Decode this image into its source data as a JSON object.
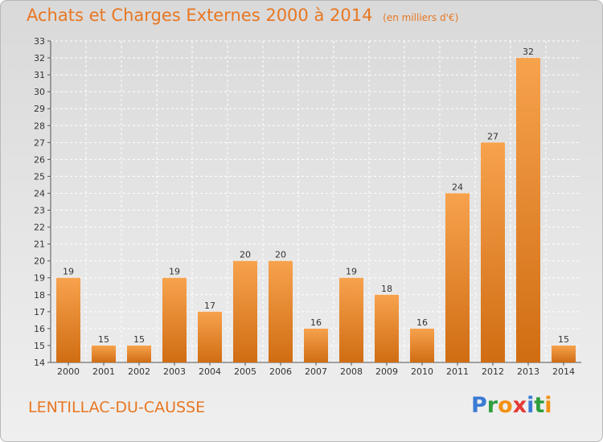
{
  "header": {
    "title": "Achats et Charges Externes 2000 à 2014",
    "subtitle": "(en milliers d'€)"
  },
  "footer": {
    "location": "LENTILLAC-DU-CAUSSE",
    "logo_parts": [
      {
        "char": "P",
        "color": "#3a7bd5"
      },
      {
        "char": "r",
        "color": "#2e9e3e"
      },
      {
        "char": "o",
        "color": "#f29111"
      },
      {
        "char": "x",
        "color": "#e53935"
      },
      {
        "char": "i",
        "color": "#3a7bd5"
      },
      {
        "char": "t",
        "color": "#2e9e3e"
      },
      {
        "char": "i",
        "color": "#f29111"
      }
    ]
  },
  "colors": {
    "bar_light": "#f7a24d",
    "bar_dark": "#d06d13",
    "text_accent": "#e87722"
  },
  "chart_data": {
    "type": "bar",
    "title": "Achats et Charges Externes 2000 à 2014",
    "subtitle": "(en milliers d'€)",
    "categories": [
      "2000",
      "2001",
      "2002",
      "2003",
      "2004",
      "2005",
      "2006",
      "2007",
      "2008",
      "2009",
      "2010",
      "2011",
      "2012",
      "2013",
      "2014"
    ],
    "values": [
      19,
      15,
      15,
      19,
      17,
      20,
      20,
      16,
      19,
      18,
      16,
      24,
      27,
      32,
      15
    ],
    "ylim": [
      14,
      33
    ],
    "yticks": [
      14,
      15,
      16,
      17,
      18,
      19,
      20,
      21,
      22,
      23,
      24,
      25,
      26,
      27,
      28,
      29,
      30,
      31,
      32,
      33
    ],
    "grid": true,
    "xlabel": "",
    "ylabel": ""
  }
}
